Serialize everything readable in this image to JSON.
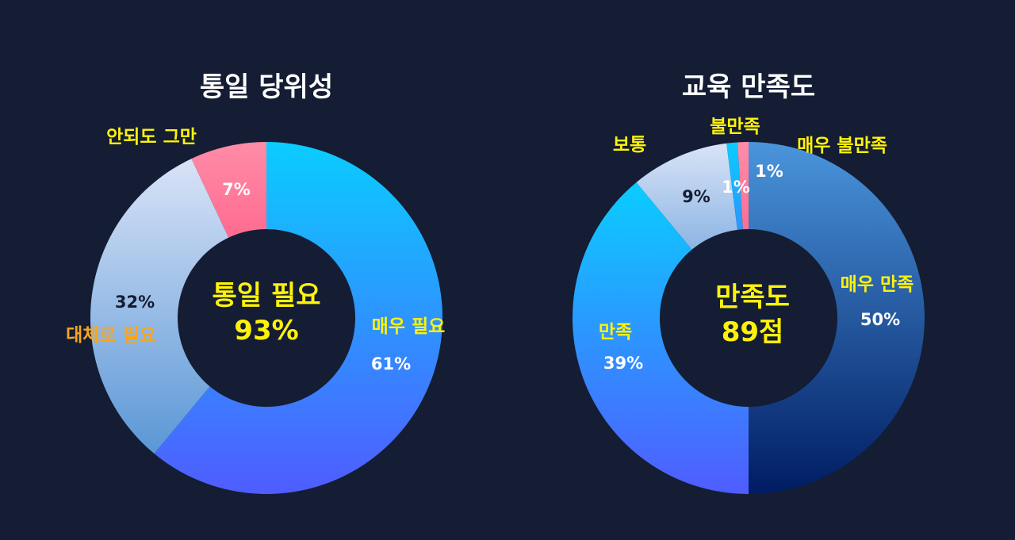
{
  "chart_data": [
    {
      "type": "pie",
      "title": "통일 당위성",
      "center_label": "통일 필요",
      "center_value": "93%",
      "slices": [
        {
          "label": "매우 필요",
          "value": 61,
          "value_label": "61%",
          "label_color": "#fff20a",
          "value_color": "#ffffff",
          "colors": [
            "#0acdff",
            "#505cff"
          ]
        },
        {
          "label": "대체로 필요",
          "value": 32,
          "value_label": "32%",
          "label_color": "#f5a623",
          "value_color": "#141d33",
          "colors": [
            "#d9e3f7",
            "#5a97d6"
          ]
        },
        {
          "label": "안되도 그만",
          "value": 7,
          "value_label": "7%",
          "label_color": "#fff20a",
          "value_color": "#ffffff",
          "colors": [
            "#ff8ca8",
            "#ff4f7c"
          ]
        }
      ]
    },
    {
      "type": "pie",
      "title": "교육 만족도",
      "center_label": "만족도",
      "center_value": "89점",
      "slices": [
        {
          "label": "매우 만족",
          "value": 50,
          "value_label": "50%",
          "label_color": "#fff20a",
          "value_color": "#ffffff",
          "colors": [
            "#4a95dc",
            "#001c62"
          ]
        },
        {
          "label": "만족",
          "value": 39,
          "value_label": "39%",
          "label_color": "#fff20a",
          "value_color": "#ffffff",
          "colors": [
            "#0acdff",
            "#505cff"
          ]
        },
        {
          "label": "보통",
          "value": 9,
          "value_label": "9%",
          "label_color": "#fff20a",
          "value_color": "#141d33",
          "colors": [
            "#d9e3f7",
            "#5a97d6"
          ]
        },
        {
          "label": "불만족",
          "value": 1,
          "value_label": "1%",
          "label_color": "#fff20a",
          "value_color": "#ffffff",
          "colors": [
            "#0acdff",
            "#505cff"
          ]
        },
        {
          "label": "매우 불만족",
          "value": 1,
          "value_label": "1%",
          "label_color": "#fff20a",
          "value_color": "#ffffff",
          "colors": [
            "#ff8ca8",
            "#ff4f7c"
          ]
        }
      ]
    }
  ],
  "style": {
    "background": "#141d33",
    "title_color": "#ffffff",
    "center_color": "#fff20a",
    "hole_color": "#141d33"
  }
}
